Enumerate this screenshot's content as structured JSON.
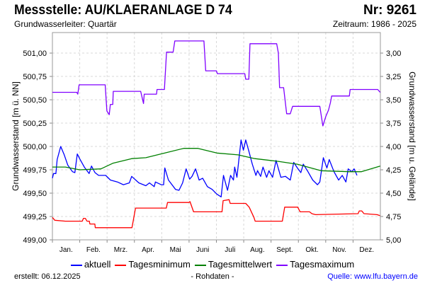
{
  "header": {
    "title": "Messstelle: AU/KLAERANLAGE D 74",
    "nr": "Nr: 9261",
    "aquifer": "Grundwasserleiter: Quartär",
    "period": "Zeitraum: 1986 - 2025"
  },
  "footer": {
    "created": "erstellt:  06.12.2025",
    "raw": "- Rohdaten -",
    "source": "Quelle: www.lfu.bayern.de"
  },
  "chart_data": {
    "type": "line",
    "ylabel": "Grundwasserstand [m ü. NN]",
    "ylabel_right": "Grundwasserstand [m u. Gelände]",
    "ylim": [
      499.0,
      501.22
    ],
    "ground_level": 504.0,
    "x_unit": "day of year",
    "xlim": [
      0,
      365
    ],
    "yticks": [
      "499,00",
      "499,25",
      "499,50",
      "499,75",
      "500,00",
      "500,25",
      "500,50",
      "500,75",
      "501,00"
    ],
    "yticks_right": [
      "5,00",
      "4,75",
      "4,50",
      "4,25",
      "4,00",
      "3,75",
      "3,50",
      "3,25",
      "3,00"
    ],
    "months": [
      "Jan.",
      "Feb.",
      "Mrz.",
      "Apr.",
      "Mai",
      "Juni",
      "Juli",
      "Aug.",
      "Sept.",
      "Okt.",
      "Nov.",
      "Dez."
    ],
    "grid": true,
    "legend_position": "bottom",
    "series": [
      {
        "name": "aktuell",
        "color": "#0000ff",
        "points": [
          [
            0,
            499.66
          ],
          [
            1.3,
            499.71
          ],
          [
            3.9,
            499.71
          ],
          [
            5.3,
            499.86
          ],
          [
            9.2,
            500.0
          ],
          [
            13.2,
            499.91
          ],
          [
            17.1,
            499.8
          ],
          [
            22.4,
            499.73
          ],
          [
            25,
            499.72
          ],
          [
            27.7,
            499.92
          ],
          [
            30.3,
            499.87
          ],
          [
            35.5,
            499.78
          ],
          [
            40.8,
            499.71
          ],
          [
            43.5,
            499.79
          ],
          [
            47.4,
            499.72
          ],
          [
            51.4,
            499.69
          ],
          [
            59.3,
            499.69
          ],
          [
            64.6,
            499.64
          ],
          [
            72.4,
            499.62
          ],
          [
            79,
            499.59
          ],
          [
            85.6,
            499.61
          ],
          [
            88.2,
            499.68
          ],
          [
            96.2,
            499.61
          ],
          [
            104,
            499.58
          ],
          [
            108,
            499.61
          ],
          [
            113.3,
            499.57
          ],
          [
            114.6,
            499.62
          ],
          [
            121.1,
            499.59
          ],
          [
            123.8,
            499.59
          ],
          [
            125.1,
            499.77
          ],
          [
            129.1,
            499.64
          ],
          [
            137,
            499.54
          ],
          [
            140.9,
            499.53
          ],
          [
            144.9,
            499.61
          ],
          [
            148.8,
            499.76
          ],
          [
            152.7,
            499.65
          ],
          [
            155.4,
            499.68
          ],
          [
            159.3,
            499.76
          ],
          [
            163.3,
            499.64
          ],
          [
            167.2,
            499.66
          ],
          [
            172.5,
            499.57
          ],
          [
            177.8,
            499.54
          ],
          [
            183,
            499.49
          ],
          [
            187.8,
            499.46
          ],
          [
            190.4,
            499.69
          ],
          [
            194.9,
            499.53
          ],
          [
            198.3,
            499.69
          ],
          [
            201.5,
            499.64
          ],
          [
            202.8,
            499.78
          ],
          [
            205.4,
            499.67
          ],
          [
            209.9,
            500.07
          ],
          [
            212.5,
            499.96
          ],
          [
            215.1,
            500.07
          ],
          [
            218.6,
            499.95
          ],
          [
            222.5,
            499.81
          ],
          [
            226.5,
            499.69
          ],
          [
            228.3,
            499.74
          ],
          [
            231.8,
            499.68
          ],
          [
            234.4,
            499.78
          ],
          [
            238.4,
            499.67
          ],
          [
            241,
            499.74
          ],
          [
            245,
            499.67
          ],
          [
            248.9,
            499.85
          ],
          [
            254.2,
            499.67
          ],
          [
            259.4,
            499.68
          ],
          [
            264.7,
            499.64
          ],
          [
            268.6,
            499.83
          ],
          [
            272.6,
            499.77
          ],
          [
            276.5,
            499.72
          ],
          [
            279.2,
            499.81
          ],
          [
            284.4,
            499.73
          ],
          [
            289.7,
            499.64
          ],
          [
            295,
            499.59
          ],
          [
            297.6,
            499.62
          ],
          [
            301.5,
            499.88
          ],
          [
            305.5,
            499.77
          ],
          [
            308.1,
            499.86
          ],
          [
            313.4,
            499.73
          ],
          [
            318.6,
            499.64
          ],
          [
            322.6,
            499.69
          ],
          [
            326.6,
            499.62
          ],
          [
            329.2,
            499.76
          ],
          [
            333.2,
            499.73
          ],
          [
            335.8,
            499.76
          ],
          [
            339,
            499.69
          ]
        ]
      },
      {
        "name": "Tagesminimum",
        "color": "#ff0000",
        "points": [
          [
            0,
            499.24
          ],
          [
            2.6,
            499.21
          ],
          [
            14.5,
            499.2
          ],
          [
            33.2,
            499.2
          ],
          [
            34.5,
            499.23
          ],
          [
            36.6,
            499.23
          ],
          [
            38.5,
            499.2
          ],
          [
            41.1,
            499.2
          ],
          [
            41.7,
            499.17
          ],
          [
            47.2,
            499.17
          ],
          [
            47.7,
            499.13
          ],
          [
            88.5,
            499.13
          ],
          [
            89.9,
            499.2
          ],
          [
            92.5,
            499.34
          ],
          [
            126.8,
            499.34
          ],
          [
            128.1,
            499.4
          ],
          [
            151.8,
            499.4
          ],
          [
            153.1,
            499.41
          ],
          [
            157.1,
            499.3
          ],
          [
            188.7,
            499.3
          ],
          [
            190,
            499.42
          ],
          [
            196.6,
            499.43
          ],
          [
            197.9,
            499.39
          ],
          [
            215.1,
            499.39
          ],
          [
            219,
            499.35
          ],
          [
            224.3,
            499.24
          ],
          [
            225.6,
            499.2
          ],
          [
            255.9,
            499.2
          ],
          [
            258.5,
            499.35
          ],
          [
            273,
            499.35
          ],
          [
            275.7,
            499.3
          ],
          [
            286.2,
            499.3
          ],
          [
            288.8,
            499.28
          ],
          [
            292.8,
            499.27
          ],
          [
            340.2,
            499.28
          ],
          [
            341.5,
            499.31
          ],
          [
            344.2,
            499.31
          ],
          [
            346.8,
            499.28
          ],
          [
            361.3,
            499.27
          ],
          [
            364.5,
            499.26
          ]
        ]
      },
      {
        "name": "Tagesmittelwert",
        "color": "#008000",
        "points": [
          [
            0,
            499.78
          ],
          [
            14.5,
            499.78
          ],
          [
            30.3,
            499.75
          ],
          [
            54,
            499.76
          ],
          [
            67.2,
            499.82
          ],
          [
            88.2,
            499.87
          ],
          [
            104,
            499.88
          ],
          [
            125.1,
            499.93
          ],
          [
            146.1,
            499.98
          ],
          [
            161.9,
            499.98
          ],
          [
            183,
            499.93
          ],
          [
            206.7,
            499.91
          ],
          [
            225.2,
            499.87
          ],
          [
            251.5,
            499.84
          ],
          [
            272.6,
            499.81
          ],
          [
            298.9,
            499.74
          ],
          [
            330.5,
            499.73
          ],
          [
            343.7,
            499.73
          ],
          [
            364.8,
            499.79
          ]
        ]
      },
      {
        "name": "Tagesmaximum",
        "color": "#8000ff",
        "points": [
          [
            0,
            500.58
          ],
          [
            27.1,
            500.58
          ],
          [
            28.2,
            500.56
          ],
          [
            29.7,
            500.66
          ],
          [
            58.7,
            500.66
          ],
          [
            60.6,
            500.38
          ],
          [
            63.2,
            500.34
          ],
          [
            64.5,
            500.45
          ],
          [
            67.2,
            500.45
          ],
          [
            67.7,
            500.59
          ],
          [
            98.2,
            500.59
          ],
          [
            101.4,
            500.46
          ],
          [
            102.2,
            500.56
          ],
          [
            115.9,
            500.56
          ],
          [
            116.4,
            500.61
          ],
          [
            124.6,
            500.61
          ],
          [
            127,
            501.01
          ],
          [
            134.3,
            501.01
          ],
          [
            136.2,
            501.13
          ],
          [
            168.6,
            501.13
          ],
          [
            170.6,
            500.81
          ],
          [
            182.5,
            500.81
          ],
          [
            183.6,
            500.78
          ],
          [
            214.1,
            500.78
          ],
          [
            215.1,
            500.72
          ],
          [
            218.6,
            500.72
          ],
          [
            219.9,
            501.1
          ],
          [
            249.6,
            501.1
          ],
          [
            251.5,
            501.0
          ],
          [
            252.8,
            500.63
          ],
          [
            257.3,
            500.63
          ],
          [
            260.7,
            500.35
          ],
          [
            264.7,
            500.35
          ],
          [
            267.3,
            500.43
          ],
          [
            297.6,
            500.43
          ],
          [
            301,
            500.22
          ],
          [
            304.2,
            500.32
          ],
          [
            307.3,
            500.39
          ],
          [
            309.4,
            500.47
          ],
          [
            310.8,
            500.54
          ],
          [
            330.5,
            500.54
          ],
          [
            331.3,
            500.61
          ],
          [
            362.1,
            500.61
          ],
          [
            364.8,
            500.58
          ]
        ]
      }
    ]
  }
}
